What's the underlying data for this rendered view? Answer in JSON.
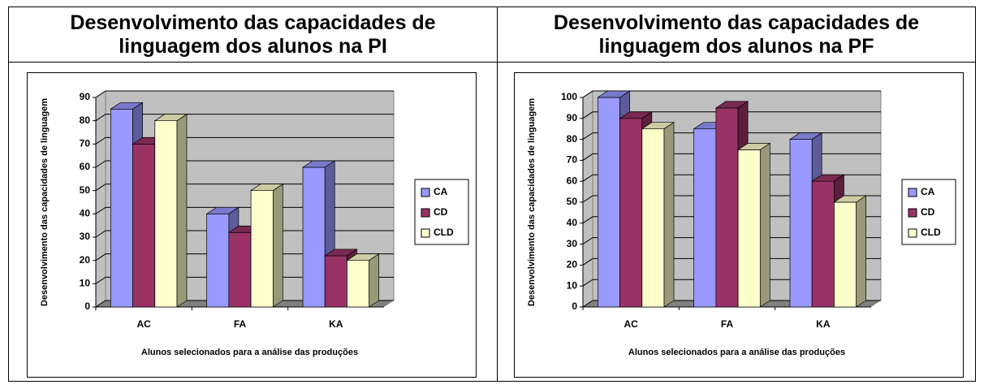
{
  "chart_data": [
    {
      "type": "bar",
      "title": "Desenvolvimento das capacidades de linguagem dos alunos na PI",
      "y_label": "Desenvolvimento das capacidades de linguagem",
      "x_label": "Alunos selecionados para a análise das produções",
      "categories": [
        "AC",
        "FA",
        "KA"
      ],
      "series": [
        {
          "name": "CA",
          "color": "#9999ff",
          "values": [
            85,
            40,
            60
          ]
        },
        {
          "name": "CD",
          "color": "#993366",
          "values": [
            70,
            32,
            22
          ]
        },
        {
          "name": "CLD",
          "color": "#ffffcc",
          "values": [
            80,
            50,
            20
          ]
        }
      ],
      "ylim": [
        0,
        90
      ],
      "yticks": [
        0,
        10,
        20,
        30,
        40,
        50,
        60,
        70,
        80,
        90
      ],
      "grid": true,
      "legend": "right"
    },
    {
      "type": "bar",
      "title": "Desenvolvimento das capacidades de linguagem dos alunos na PF",
      "y_label": "Desenvolvimento das capacidades de linguagem",
      "x_label": "Alunos selecionados para a análise das produções",
      "categories": [
        "AC",
        "FA",
        "KA"
      ],
      "series": [
        {
          "name": "CA",
          "color": "#9999ff",
          "values": [
            100,
            85,
            80
          ]
        },
        {
          "name": "CD",
          "color": "#993366",
          "values": [
            90,
            95,
            60
          ]
        },
        {
          "name": "CLD",
          "color": "#ffffcc",
          "values": [
            85,
            75,
            50
          ]
        }
      ],
      "ylim": [
        0,
        100
      ],
      "yticks": [
        0,
        10,
        20,
        30,
        40,
        50,
        60,
        70,
        80,
        90,
        100
      ],
      "grid": true,
      "legend": "right"
    }
  ]
}
